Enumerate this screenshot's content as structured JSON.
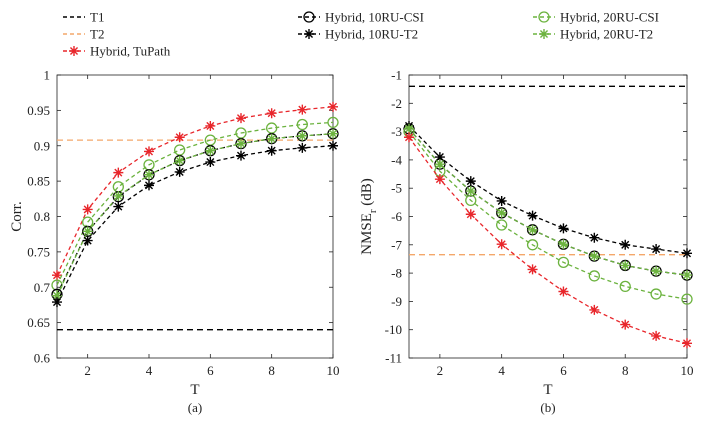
{
  "legend": [
    {
      "key": "t1",
      "label": "T1",
      "color": "#000000",
      "marker": "none"
    },
    {
      "key": "t2",
      "label": "T2",
      "color": "#f4a76a",
      "marker": "none"
    },
    {
      "key": "tupath",
      "label": "Hybrid, TuPath",
      "color": "#e8262b",
      "marker": "star"
    },
    {
      "key": "r10csi",
      "label": "Hybrid, 10RU-CSI",
      "color": "#000000",
      "marker": "circle"
    },
    {
      "key": "r10t2",
      "label": "Hybrid, 10RU-T2",
      "color": "#000000",
      "marker": "star"
    },
    {
      "key": "r20csi",
      "label": "Hybrid, 20RU-CSI",
      "color": "#6cb33f",
      "marker": "circle"
    },
    {
      "key": "r20t2",
      "label": "Hybrid, 20RU-T2",
      "color": "#6cb33f",
      "marker": "star"
    }
  ],
  "chart_data": [
    {
      "type": "line",
      "panel": "a",
      "caption": "(a)",
      "xlabel": "T",
      "ylabel": "Corr.",
      "xlim": [
        1,
        10
      ],
      "ylim": [
        0.6,
        1.0
      ],
      "xticks": [
        2,
        4,
        6,
        8,
        10
      ],
      "xtick_labels": [
        "2",
        "4",
        "6",
        "8",
        "10"
      ],
      "yticks": [
        0.6,
        0.65,
        0.7,
        0.75,
        0.8,
        0.85,
        0.9,
        0.95,
        1.0
      ],
      "ytick_labels": [
        "0.6",
        "0.65",
        "0.7",
        "0.75",
        "0.8",
        "0.85",
        "0.9",
        "0.95",
        "1"
      ],
      "x": [
        1,
        2,
        3,
        4,
        5,
        6,
        7,
        8,
        9,
        10
      ],
      "hlines": [
        {
          "key": "t1",
          "value": 0.64
        },
        {
          "key": "t2",
          "value": 0.908
        }
      ],
      "series": [
        {
          "key": "tupath",
          "values": [
            0.717,
            0.81,
            0.862,
            0.892,
            0.912,
            0.928,
            0.939,
            0.946,
            0.951,
            0.955
          ]
        },
        {
          "key": "r20csi",
          "values": [
            0.703,
            0.792,
            0.842,
            0.873,
            0.894,
            0.908,
            0.918,
            0.925,
            0.93,
            0.933
          ]
        },
        {
          "key": "r10csi",
          "values": [
            0.69,
            0.779,
            0.828,
            0.859,
            0.879,
            0.893,
            0.903,
            0.91,
            0.914,
            0.917
          ]
        },
        {
          "key": "r20t2",
          "values": [
            0.688,
            0.779,
            0.829,
            0.859,
            0.879,
            0.893,
            0.903,
            0.91,
            0.914,
            0.917
          ]
        },
        {
          "key": "r10t2",
          "values": [
            0.679,
            0.766,
            0.814,
            0.844,
            0.863,
            0.877,
            0.886,
            0.893,
            0.897,
            0.9
          ]
        }
      ]
    },
    {
      "type": "line",
      "panel": "b",
      "caption": "(b)",
      "xlabel": "T",
      "ylabel": "NMSE",
      "ylabel_sub": "r",
      "ylabel_unit": " (dB)",
      "xlim": [
        1,
        10
      ],
      "ylim": [
        -11,
        -1
      ],
      "xticks": [
        2,
        4,
        6,
        8,
        10
      ],
      "xtick_labels": [
        "2",
        "4",
        "6",
        "8",
        "10"
      ],
      "yticks": [
        -11,
        -10,
        -9,
        -8,
        -7,
        -6,
        -5,
        -4,
        -3,
        -2,
        -1
      ],
      "ytick_labels": [
        "-11",
        "-10",
        "-9",
        "-8",
        "-7",
        "-6",
        "-5",
        "-4",
        "-3",
        "-2",
        "-1"
      ],
      "x": [
        1,
        2,
        3,
        4,
        5,
        6,
        7,
        8,
        9,
        10
      ],
      "hlines": [
        {
          "key": "t1",
          "value": -1.4
        },
        {
          "key": "t2",
          "value": -7.35
        }
      ],
      "series": [
        {
          "key": "r10t2",
          "values": [
            -2.8,
            -3.9,
            -4.75,
            -5.45,
            -5.97,
            -6.42,
            -6.75,
            -7.0,
            -7.15,
            -7.3
          ]
        },
        {
          "key": "r10csi",
          "values": [
            -2.9,
            -4.15,
            -5.1,
            -5.87,
            -6.47,
            -6.98,
            -7.4,
            -7.73,
            -7.93,
            -8.07
          ]
        },
        {
          "key": "r20t2",
          "values": [
            -2.9,
            -4.15,
            -5.1,
            -5.87,
            -6.47,
            -6.98,
            -7.4,
            -7.73,
            -7.93,
            -8.07
          ]
        },
        {
          "key": "r20csi",
          "values": [
            -3.0,
            -4.4,
            -5.43,
            -6.3,
            -7.0,
            -7.62,
            -8.1,
            -8.47,
            -8.74,
            -8.92
          ]
        },
        {
          "key": "tupath",
          "values": [
            -3.2,
            -4.68,
            -5.92,
            -6.98,
            -7.87,
            -8.65,
            -9.3,
            -9.82,
            -10.22,
            -10.48
          ]
        }
      ]
    }
  ]
}
